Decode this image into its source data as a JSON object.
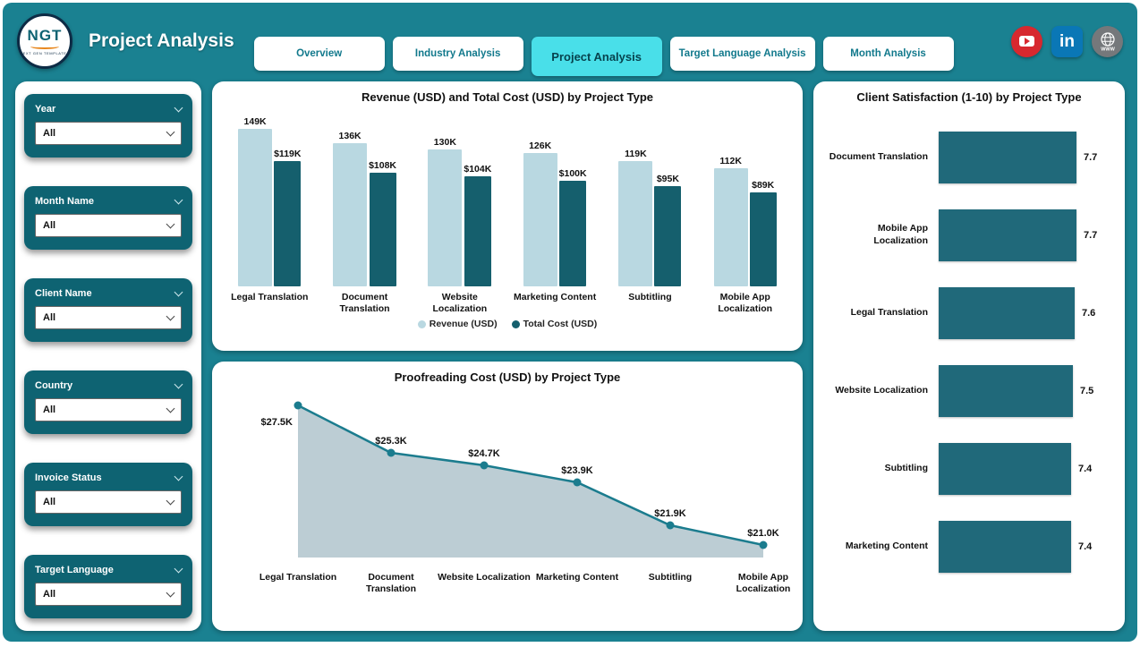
{
  "header": {
    "logo_text": "NGT",
    "logo_caption": "NEXT GEN TEMPLATES",
    "title": "Project Analysis",
    "tabs": [
      {
        "label": "Overview",
        "active": false
      },
      {
        "label": "Industry Analysis",
        "active": false
      },
      {
        "label": "Project Analysis",
        "active": true
      },
      {
        "label": "Target Language Analysis",
        "active": false
      },
      {
        "label": "Month Analysis",
        "active": false
      }
    ],
    "social_icons": [
      "youtube-icon",
      "linkedin-icon",
      "globe-icon"
    ]
  },
  "filters": [
    {
      "label": "Year",
      "value": "All"
    },
    {
      "label": "Month Name",
      "value": "All"
    },
    {
      "label": "Client Name",
      "value": "All"
    },
    {
      "label": "Country",
      "value": "All"
    },
    {
      "label": "Invoice Status",
      "value": "All"
    },
    {
      "label": "Target Language",
      "value": "All"
    }
  ],
  "chart_data": [
    {
      "type": "bar",
      "title": "Revenue (USD) and Total Cost (USD) by Project Type",
      "categories": [
        "Legal Translation",
        "Document Translation",
        "Website Localization",
        "Marketing Content",
        "Subtitling",
        "Mobile App Localization"
      ],
      "series": [
        {
          "name": "Revenue (USD)",
          "color": "#b9d8e1",
          "values": [
            149,
            136,
            130,
            126,
            119,
            112
          ],
          "labels": [
            "149K",
            "136K",
            "130K",
            "126K",
            "119K",
            "112K"
          ]
        },
        {
          "name": "Total Cost (USD)",
          "color": "#155f6d",
          "values": [
            119,
            108,
            104,
            100,
            95,
            89
          ],
          "labels": [
            "$119K",
            "$108K",
            "$104K",
            "$100K",
            "$95K",
            "$89K"
          ]
        }
      ],
      "ylim": [
        0,
        160
      ],
      "legend_position": "bottom"
    },
    {
      "type": "area",
      "title": "Proofreading Cost (USD) by Project Type",
      "categories": [
        "Legal Translation",
        "Document Translation",
        "Website Localization",
        "Marketing Content",
        "Subtitling",
        "Mobile App Localization"
      ],
      "values": [
        27.5,
        25.3,
        24.7,
        23.9,
        21.9,
        21.0
      ],
      "labels": [
        "$27.5K",
        "$25.3K",
        "$24.7K",
        "$23.9K",
        "$21.9K",
        "$21.0K"
      ],
      "line_color": "#1b7c8e",
      "fill_color": "#bccdd4"
    },
    {
      "type": "bar",
      "orientation": "horizontal",
      "title": "Client Satisfaction (1-10) by Project Type",
      "categories": [
        "Document Translation",
        "Mobile App Localization",
        "Legal Translation",
        "Website Localization",
        "Subtitling",
        "Marketing Content"
      ],
      "values": [
        7.7,
        7.7,
        7.6,
        7.5,
        7.4,
        7.4
      ],
      "labels": [
        "7.7",
        "7.7",
        "7.6",
        "7.5",
        "7.4",
        "7.4"
      ],
      "bar_color": "#20697a",
      "xlim": [
        0,
        10
      ]
    }
  ]
}
